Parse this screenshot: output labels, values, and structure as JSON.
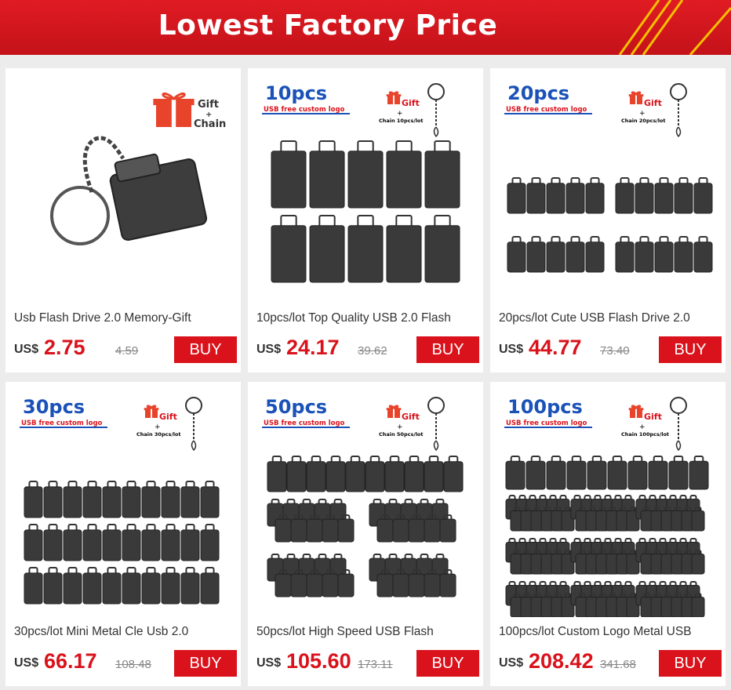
{
  "header": {
    "title": "Lowest Factory Price"
  },
  "products": [
    {
      "title": "Usb Flash Drive 2.0 Memory-Gift",
      "currency": "US$",
      "price": "2.75",
      "old_price": "4.59",
      "button": "BUY",
      "image": {
        "gift": "Gift",
        "plus": "+",
        "chain": "Chain"
      }
    },
    {
      "title": "10pcs/lot Top Quality USB 2.0 Flash",
      "currency": "US$",
      "price": "24.17",
      "old_price": "39.62",
      "button": "BUY",
      "image": {
        "badge": "10pcs",
        "custom": "USB free custom logo",
        "gift": "Gift",
        "plus": "+",
        "chain_note": "Chain 10pcs/lot"
      }
    },
    {
      "title": "20pcs/lot Cute USB Flash Drive 2.0",
      "currency": "US$",
      "price": "44.77",
      "old_price": "73.40",
      "button": "BUY",
      "image": {
        "badge": "20pcs",
        "custom": "USB free custom logo",
        "gift": "Gift",
        "plus": "+",
        "chain_note": "Chain 20pcs/lot"
      }
    },
    {
      "title": "30pcs/lot Mini Metal Cle Usb 2.0",
      "currency": "US$",
      "price": "66.17",
      "old_price": "108.48",
      "button": "BUY",
      "image": {
        "badge": "30pcs",
        "custom": "USB free custom logo",
        "gift": "Gift",
        "plus": "+",
        "chain_note": "Chain 30pcs/lot"
      }
    },
    {
      "title": "50pcs/lot High Speed USB Flash",
      "currency": "US$",
      "price": "105.60",
      "old_price": "173.11",
      "button": "BUY",
      "image": {
        "badge": "50pcs",
        "custom": "USB free custom logo",
        "gift": "Gift",
        "plus": "+",
        "chain_note": "Chain 50pcs/lot"
      }
    },
    {
      "title": "100pcs/lot Custom Logo Metal USB",
      "currency": "US$",
      "price": "208.42",
      "old_price": "341.68",
      "button": "BUY",
      "image": {
        "badge": "100pcs",
        "custom": "USB free custom logo",
        "gift": "Gift",
        "plus": "+",
        "chain_note": "Chain 100pcs/lot"
      }
    }
  ]
}
